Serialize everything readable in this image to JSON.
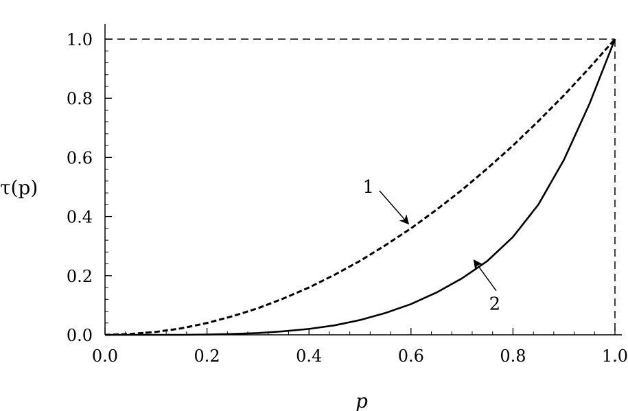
{
  "chart_data": {
    "type": "line",
    "xlabel": "p",
    "ylabel": "τ(p)",
    "xlim": [
      0,
      1
    ],
    "ylim": [
      0,
      1
    ],
    "x_ticks": [
      "0.0",
      "0.2",
      "0.4",
      "0.6",
      "0.8",
      "1.0"
    ],
    "y_ticks": [
      "0.0",
      "0.2",
      "0.4",
      "0.6",
      "0.8",
      "1.0"
    ],
    "grid": false,
    "reference_lines": [
      {
        "type": "horizontal",
        "y": 1.0,
        "style": "dashed"
      },
      {
        "type": "vertical",
        "x": 1.0,
        "style": "dashed"
      }
    ],
    "series": [
      {
        "label": "1",
        "style": "dashed",
        "color": "#000000",
        "x": [
          0.0,
          0.05,
          0.1,
          0.15,
          0.2,
          0.25,
          0.3,
          0.35,
          0.4,
          0.45,
          0.5,
          0.55,
          0.6,
          0.65,
          0.7,
          0.75,
          0.8,
          0.85,
          0.9,
          0.95,
          1.0
        ],
        "y": [
          0.0,
          0.003,
          0.01,
          0.022,
          0.04,
          0.063,
          0.09,
          0.123,
          0.16,
          0.203,
          0.25,
          0.303,
          0.36,
          0.423,
          0.49,
          0.563,
          0.64,
          0.723,
          0.81,
          0.903,
          1.0
        ]
      },
      {
        "label": "2",
        "style": "solid",
        "color": "#000000",
        "x": [
          0.0,
          0.05,
          0.1,
          0.15,
          0.2,
          0.25,
          0.3,
          0.35,
          0.4,
          0.45,
          0.5,
          0.55,
          0.6,
          0.65,
          0.7,
          0.75,
          0.8,
          0.85,
          0.9,
          0.95,
          1.0
        ],
        "y": [
          0.0,
          0.0,
          0.0,
          0.0,
          0.001,
          0.003,
          0.006,
          0.012,
          0.02,
          0.032,
          0.05,
          0.074,
          0.104,
          0.143,
          0.191,
          0.25,
          0.331,
          0.441,
          0.592,
          0.781,
          1.0
        ]
      }
    ],
    "annotations": [
      {
        "text": "1",
        "target": "series-1",
        "at_x": 0.6,
        "at_y": 0.36
      },
      {
        "text": "2",
        "target": "series-2",
        "at_x": 0.72,
        "at_y": 0.27
      }
    ]
  }
}
